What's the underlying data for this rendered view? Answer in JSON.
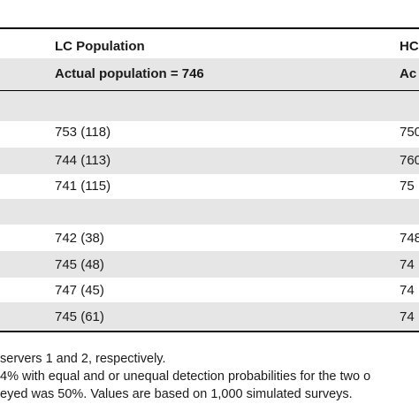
{
  "header": {
    "lc_population": "LC Population",
    "hc_population_partial": "HC",
    "lc_actual": "Actual population = 746",
    "hc_actual_partial": "Ac"
  },
  "rows": [
    {
      "lc": "753 (118)",
      "hc": "750"
    },
    {
      "lc": "744 (113)",
      "hc": "760"
    },
    {
      "lc": "741 (115)",
      "hc": "75"
    },
    {
      "lc": "742 (38)",
      "hc": "748"
    },
    {
      "lc": "745 (48)",
      "hc": "74"
    },
    {
      "lc": "747 (45)",
      "hc": "74"
    },
    {
      "lc": "745 (61)",
      "hc": "74"
    }
  ],
  "footnotes": [
    "servers 1 and 2, respectively.",
    "4% with equal and or unequal detection probabilities for the two o",
    "eyed was 50%. Values are based on 1,000 simulated surveys."
  ]
}
